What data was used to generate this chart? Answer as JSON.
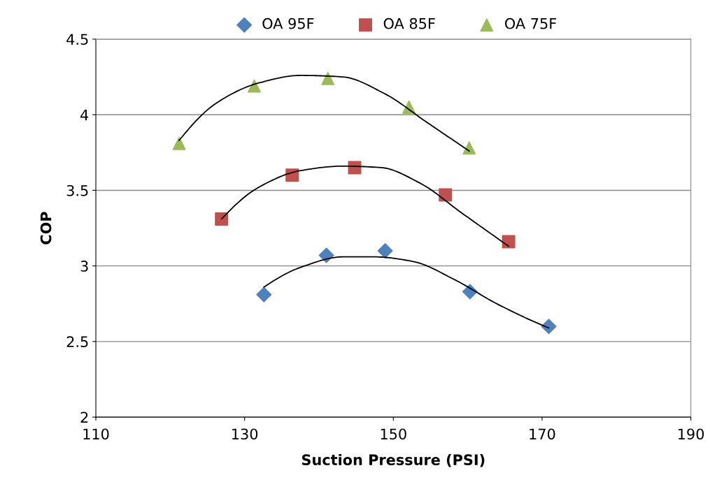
{
  "chart_data": {
    "type": "scatter",
    "xlabel": "Suction Pressure (PSI)",
    "ylabel": "COP",
    "xlim": [
      110,
      190
    ],
    "xticks": [
      110,
      130,
      150,
      170,
      190
    ],
    "ylim": [
      2,
      4.5
    ],
    "yticks": [
      2,
      2.5,
      3,
      3.5,
      4,
      4.5
    ],
    "grid": "y",
    "legend": "top",
    "series": [
      {
        "name": "OA 95F",
        "color": "#4f81bd",
        "marker": "diamond",
        "x": [
          132.6,
          141.0,
          148.9,
          160.3,
          170.9
        ],
        "values": [
          2.81,
          3.07,
          3.1,
          2.83,
          2.6
        ]
      },
      {
        "name": "OA 85F",
        "color": "#c0504d",
        "marker": "square",
        "x": [
          126.9,
          136.4,
          144.8,
          157.0,
          165.5
        ],
        "values": [
          3.31,
          3.6,
          3.65,
          3.47,
          3.16
        ]
      },
      {
        "name": "OA 75F",
        "color": "#9bbb59",
        "marker": "triangle",
        "x": [
          121.2,
          131.3,
          141.2,
          152.1,
          160.2
        ],
        "values": [
          3.81,
          4.19,
          4.24,
          4.05,
          3.78
        ]
      },
      {
        "type": "line",
        "color": "#000000",
        "marker": "none",
        "x": [
          132.6,
          137.5,
          143.2,
          147.4,
          152.6,
          158.2,
          163.9,
          170.9
        ],
        "values": [
          2.86,
          2.99,
          3.06,
          3.06,
          3.03,
          2.91,
          2.75,
          2.59
        ]
      },
      {
        "type": "line",
        "color": "#000000",
        "marker": "none",
        "x": [
          126.9,
          131.9,
          137.5,
          143.2,
          148.4,
          153.5,
          159.2,
          165.5
        ],
        "values": [
          3.31,
          3.52,
          3.63,
          3.66,
          3.65,
          3.55,
          3.35,
          3.13
        ]
      },
      {
        "type": "line",
        "color": "#000000",
        "marker": "none",
        "x": [
          121.2,
          126.3,
          131.9,
          137.5,
          143.2,
          148.8,
          154.5,
          160.2
        ],
        "values": [
          3.83,
          4.08,
          4.21,
          4.26,
          4.25,
          4.14,
          3.95,
          3.76
        ]
      }
    ]
  }
}
